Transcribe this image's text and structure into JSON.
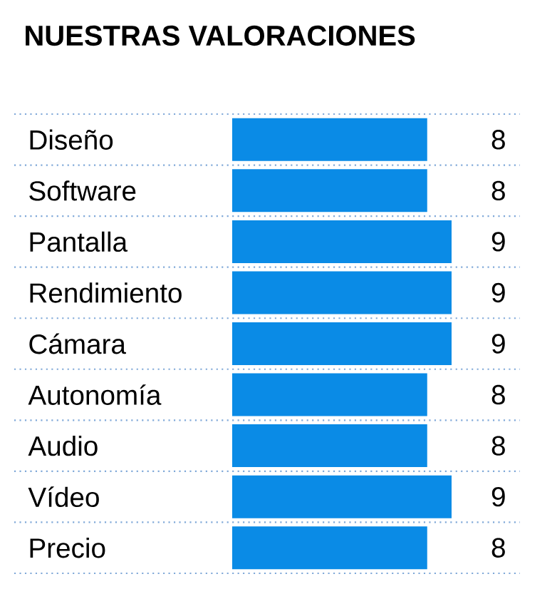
{
  "chart_data": {
    "type": "bar",
    "orientation": "horizontal",
    "title": "NUESTRAS VALORACIONES",
    "categories": [
      "Diseño",
      "Software",
      "Pantalla",
      "Rendimiento",
      "Cámara",
      "Autonomía",
      "Audio",
      "Vídeo",
      "Precio"
    ],
    "values": [
      8,
      8,
      9,
      9,
      9,
      8,
      8,
      9,
      8
    ],
    "color": "#0a8be6",
    "data_labels": true
  }
}
